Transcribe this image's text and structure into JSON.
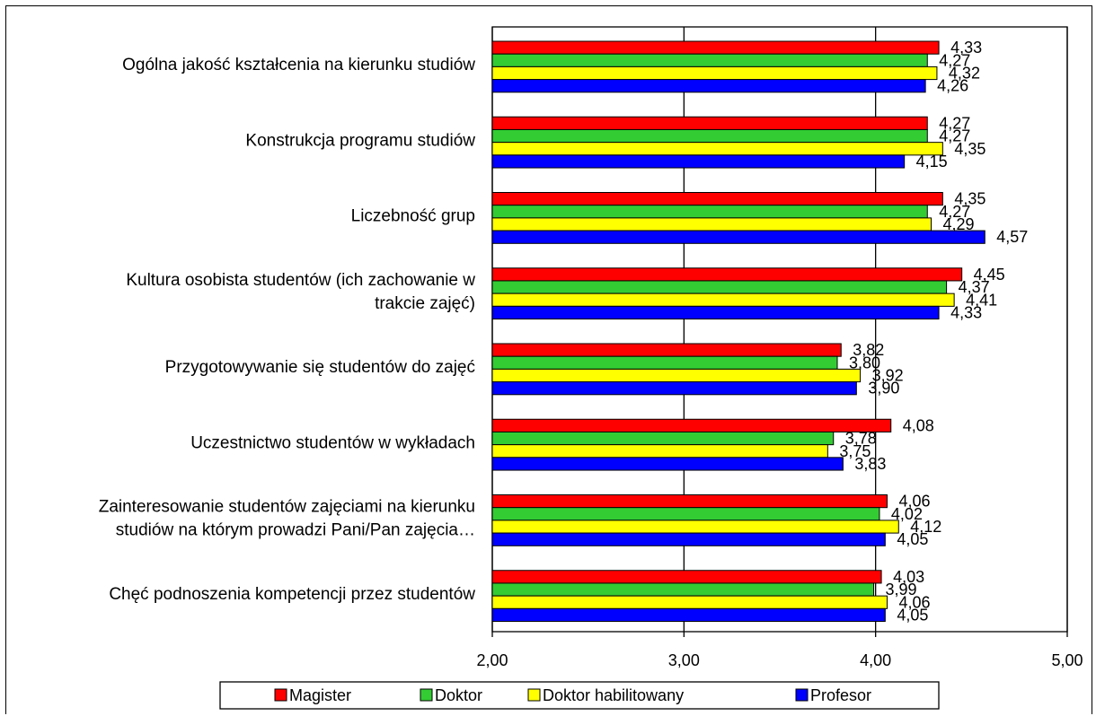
{
  "chart_data": {
    "type": "bar",
    "orientation": "horizontal",
    "categories": [
      [
        "Ogólna jakość kształcenia na kierunku studiów"
      ],
      [
        "Konstrukcja programu studiów"
      ],
      [
        "Liczebność grup"
      ],
      [
        "Kultura osobista studentów (ich zachowanie w",
        "trakcie zajęć)"
      ],
      [
        "Przygotowywanie się studentów do zajęć"
      ],
      [
        "Uczestnictwo studentów w wykładach"
      ],
      [
        "Zainteresowanie studentów zajęciami na kierunku",
        "studiów na którym prowadzi Pani/Pan zajęcia…"
      ],
      [
        "Chęć podnoszenia kompetencji przez studentów"
      ]
    ],
    "series": [
      {
        "name": "Magister",
        "color": "#ff0000",
        "values": [
          4.33,
          4.27,
          4.35,
          4.45,
          3.82,
          4.08,
          4.06,
          4.03
        ],
        "labels": [
          "4,33",
          "4,27",
          "4,35",
          "4,45",
          "3,82",
          "4,08",
          "4,06",
          "4,03"
        ]
      },
      {
        "name": "Doktor",
        "color": "#33cc33",
        "values": [
          4.27,
          4.27,
          4.27,
          4.37,
          3.8,
          3.78,
          4.02,
          3.99
        ],
        "labels": [
          "4,27",
          "4,27",
          "4,27",
          "4,37",
          "3,80",
          "3,78",
          "4,02",
          "3,99"
        ]
      },
      {
        "name": "Doktor habilitowany",
        "color": "#ffff00",
        "values": [
          4.32,
          4.35,
          4.29,
          4.41,
          3.92,
          3.75,
          4.12,
          4.06
        ],
        "labels": [
          "4,32",
          "4,35",
          "4,29",
          "4,41",
          "3,92",
          "3,75",
          "4,12",
          "4,06"
        ]
      },
      {
        "name": "Profesor",
        "color": "#0000ff",
        "values": [
          4.26,
          4.15,
          4.57,
          4.33,
          3.9,
          3.83,
          4.05,
          4.05
        ],
        "labels": [
          "4,26",
          "4,15",
          "4,57",
          "4,33",
          "3,90",
          "3,83",
          "4,05",
          "4,05"
        ]
      }
    ],
    "xlim": [
      2.0,
      5.0
    ],
    "xticks": [
      2.0,
      3.0,
      4.0,
      5.0
    ],
    "xtick_labels": [
      "2,00",
      "3,00",
      "4,00",
      "5,00"
    ],
    "grid": true,
    "legend_position": "bottom"
  }
}
